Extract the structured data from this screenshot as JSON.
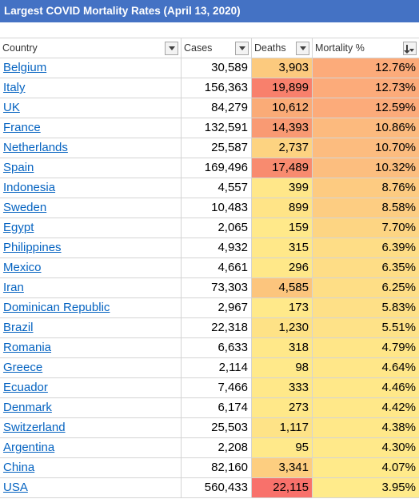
{
  "title": "Largest COVID Mortality Rates (April 13, 2020)",
  "headers": {
    "country": "Country",
    "cases": "Cases",
    "deaths": "Deaths",
    "mortality": "Mortality %"
  },
  "colors": {
    "title_bg": "#4472c4",
    "link": "#0563c1",
    "scale_low": "#ffe98a",
    "scale_high": "#f8716b"
  },
  "rows": [
    {
      "country": "Belgium",
      "cases": "30,589",
      "deaths": "3,903",
      "mortality": "12.76%",
      "deaths_bg": "#fcca7e",
      "mort_bg": "#fcab7a"
    },
    {
      "country": "Italy",
      "cases": "156,363",
      "deaths": "19,899",
      "mortality": "12.73%",
      "deaths_bg": "#f8806c",
      "mort_bg": "#fcab7a"
    },
    {
      "country": "UK",
      "cases": "84,279",
      "deaths": "10,612",
      "mortality": "12.59%",
      "deaths_bg": "#faab77",
      "mort_bg": "#fcab7a"
    },
    {
      "country": "France",
      "cases": "132,591",
      "deaths": "14,393",
      "mortality": "10.86%",
      "deaths_bg": "#f99a73",
      "mort_bg": "#fcba7e"
    },
    {
      "country": "Netherlands",
      "cases": "25,587",
      "deaths": "2,737",
      "mortality": "10.70%",
      "deaths_bg": "#fdd381",
      "mort_bg": "#fcbc7f"
    },
    {
      "country": "Spain",
      "cases": "169,496",
      "deaths": "17,489",
      "mortality": "10.32%",
      "deaths_bg": "#f88b6f",
      "mort_bg": "#fcbe7f"
    },
    {
      "country": "Indonesia",
      "cases": "4,557",
      "deaths": "399",
      "mortality": "8.76%",
      "deaths_bg": "#ffe789",
      "mort_bg": "#fdcb81"
    },
    {
      "country": "Sweden",
      "cases": "10,483",
      "deaths": "899",
      "mortality": "8.58%",
      "deaths_bg": "#ffe487",
      "mort_bg": "#fdcd82"
    },
    {
      "country": "Egypt",
      "cases": "2,065",
      "deaths": "159",
      "mortality": "7.70%",
      "deaths_bg": "#ffe98a",
      "mort_bg": "#fdd583"
    },
    {
      "country": "Philippines",
      "cases": "4,932",
      "deaths": "315",
      "mortality": "6.39%",
      "deaths_bg": "#ffe889",
      "mort_bg": "#fedd86"
    },
    {
      "country": "Mexico",
      "cases": "4,661",
      "deaths": "296",
      "mortality": "6.35%",
      "deaths_bg": "#ffe889",
      "mort_bg": "#fedd86"
    },
    {
      "country": "Iran",
      "cases": "73,303",
      "deaths": "4,585",
      "mortality": "6.25%",
      "deaths_bg": "#fcc57d",
      "mort_bg": "#fede86"
    },
    {
      "country": "Dominican Republic",
      "cases": "2,967",
      "deaths": "173",
      "mortality": "5.83%",
      "deaths_bg": "#ffe98a",
      "mort_bg": "#fee087"
    },
    {
      "country": "Brazil",
      "cases": "22,318",
      "deaths": "1,230",
      "mortality": "5.51%",
      "deaths_bg": "#fee286",
      "mort_bg": "#fee288"
    },
    {
      "country": "Romania",
      "cases": "6,633",
      "deaths": "318",
      "mortality": "4.79%",
      "deaths_bg": "#ffe889",
      "mort_bg": "#ffe688"
    },
    {
      "country": "Greece",
      "cases": "2,114",
      "deaths": "98",
      "mortality": "4.64%",
      "deaths_bg": "#ffe98a",
      "mort_bg": "#ffe789"
    },
    {
      "country": "Ecuador",
      "cases": "7,466",
      "deaths": "333",
      "mortality": "4.46%",
      "deaths_bg": "#ffe889",
      "mort_bg": "#ffe889"
    },
    {
      "country": "Denmark",
      "cases": "6,174",
      "deaths": "273",
      "mortality": "4.42%",
      "deaths_bg": "#ffe889",
      "mort_bg": "#ffe889"
    },
    {
      "country": "Switzerland",
      "cases": "25,503",
      "deaths": "1,117",
      "mortality": "4.38%",
      "deaths_bg": "#fee387",
      "mort_bg": "#ffe889"
    },
    {
      "country": "Argentina",
      "cases": "2,208",
      "deaths": "95",
      "mortality": "4.30%",
      "deaths_bg": "#ffe98a",
      "mort_bg": "#ffe98a"
    },
    {
      "country": "China",
      "cases": "82,160",
      "deaths": "3,341",
      "mortality": "4.07%",
      "deaths_bg": "#fdce80",
      "mort_bg": "#ffea8a"
    },
    {
      "country": "USA",
      "cases": "560,433",
      "deaths": "22,115",
      "mortality": "3.95%",
      "deaths_bg": "#f8716b",
      "mort_bg": "#ffeb8b"
    }
  ]
}
